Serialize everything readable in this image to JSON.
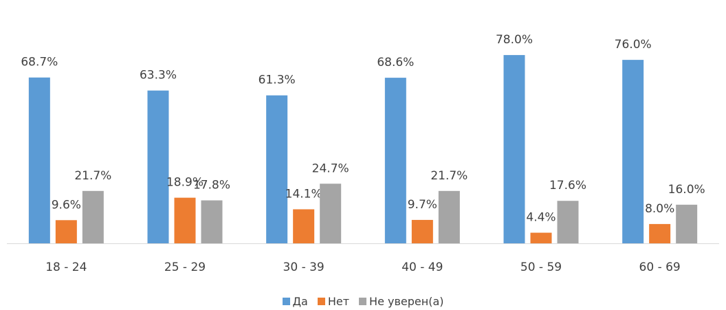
{
  "chart_data": {
    "type": "bar",
    "categories": [
      "18 - 24",
      "25 - 29",
      "30 - 39",
      "40 - 49",
      "50 - 59",
      "60 - 69"
    ],
    "series": [
      {
        "name": "Да",
        "color": "#5b9bd5",
        "values": [
          68.7,
          63.3,
          61.3,
          68.6,
          78.0,
          76.0
        ],
        "labels": [
          "68.7%",
          "63.3%",
          "61.3%",
          "68.6%",
          "78.0%",
          "76.0%"
        ]
      },
      {
        "name": "Нет",
        "color": "#ed7d31",
        "values": [
          9.6,
          18.9,
          14.1,
          9.7,
          4.4,
          8.0
        ],
        "labels": [
          "9.6%",
          "18.9%",
          "14.1%",
          "9.7%",
          "4.4%",
          "8.0%"
        ]
      },
      {
        "name": "Не уверен(а)",
        "color": "#a5a5a5",
        "values": [
          21.7,
          17.8,
          24.7,
          21.7,
          17.6,
          16.0
        ],
        "labels": [
          "21.7%",
          "17.8%",
          "24.7%",
          "21.7%",
          "17.6%",
          "16.0%"
        ]
      }
    ],
    "ylim": [
      0,
      100
    ],
    "grid": false,
    "legend_position": "bottom"
  }
}
